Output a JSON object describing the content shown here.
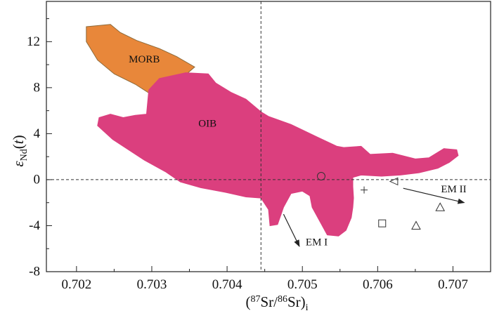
{
  "chart_data": {
    "type": "scatter",
    "xlabel": "(87Sr/86Sr)i",
    "ylabel": "εNd(t)",
    "x_axis_parts": [
      {
        "text": "(",
        "super": false,
        "sub": false
      },
      {
        "text": "87",
        "super": true,
        "sub": false
      },
      {
        "text": "Sr/",
        "super": false,
        "sub": false
      },
      {
        "text": "86",
        "super": true,
        "sub": false
      },
      {
        "text": "Sr)",
        "super": false,
        "sub": false
      },
      {
        "text": "i",
        "super": false,
        "sub": true
      }
    ],
    "y_axis_parts": [
      {
        "text": "ε",
        "italic": true,
        "sub": false
      },
      {
        "text": "Nd",
        "italic": false,
        "sub": true
      },
      {
        "text": "(",
        "italic": false,
        "sub": false
      },
      {
        "text": "t",
        "italic": true,
        "sub": false
      },
      {
        "text": ")",
        "italic": false,
        "sub": false
      }
    ],
    "xlim": [
      0.7016,
      0.7075
    ],
    "ylim": [
      -8,
      15.5
    ],
    "xticks": [
      0.702,
      0.703,
      0.704,
      0.705,
      0.706,
      0.707
    ],
    "xtick_labels": [
      "0.702",
      "0.703",
      "0.704",
      "0.705",
      "0.706",
      "0.707"
    ],
    "yticks": [
      -8,
      -4,
      0,
      4,
      8,
      12
    ],
    "ytick_labels": [
      "-8",
      "-4",
      "0",
      "4",
      "8",
      "12"
    ],
    "grid": false,
    "reference_lines": [
      {
        "orientation": "vertical",
        "x": 0.70445,
        "style": "dashed"
      },
      {
        "orientation": "horizontal",
        "y": 0,
        "style": "dashed"
      }
    ],
    "fields": [
      {
        "name": "MORB",
        "color": "#E8873A",
        "outline": "#8C6A3A",
        "label_at": [
          0.7029,
          10.4
        ],
        "polygon": [
          [
            0.70213,
            13.3
          ],
          [
            0.70245,
            13.5
          ],
          [
            0.70258,
            12.8
          ],
          [
            0.7028,
            12.1
          ],
          [
            0.7031,
            11.4
          ],
          [
            0.70333,
            10.7
          ],
          [
            0.70357,
            9.8
          ],
          [
            0.70327,
            8.1
          ],
          [
            0.703,
            7.3
          ],
          [
            0.70297,
            7.5
          ],
          [
            0.70278,
            8.3
          ],
          [
            0.7025,
            9.2
          ],
          [
            0.70228,
            10.4
          ],
          [
            0.70213,
            12.0
          ]
        ]
      },
      {
        "name": "OIB",
        "color": "#DB3F7E",
        "outline": "#DB3F7E",
        "label_at": [
          0.70374,
          4.8
        ],
        "polygon": [
          [
            0.70293,
            5.7
          ],
          [
            0.70296,
            7.8
          ],
          [
            0.7031,
            8.8
          ],
          [
            0.70345,
            9.3
          ],
          [
            0.70375,
            9.2
          ],
          [
            0.70385,
            8.4
          ],
          [
            0.70405,
            7.6
          ],
          [
            0.70425,
            7.0
          ],
          [
            0.70445,
            5.9
          ],
          [
            0.70455,
            5.5
          ],
          [
            0.70485,
            4.8
          ],
          [
            0.7052,
            3.7
          ],
          [
            0.70546,
            2.9
          ],
          [
            0.70555,
            2.8
          ],
          [
            0.70578,
            2.9
          ],
          [
            0.7059,
            2.2
          ],
          [
            0.7062,
            2.3
          ],
          [
            0.7065,
            1.8
          ],
          [
            0.70668,
            1.9
          ],
          [
            0.70688,
            2.7
          ],
          [
            0.70705,
            2.6
          ],
          [
            0.70707,
            2.1
          ],
          [
            0.70695,
            1.5
          ],
          [
            0.7068,
            1.0
          ],
          [
            0.70655,
            0.6
          ],
          [
            0.7063,
            0.4
          ],
          [
            0.70605,
            0.3
          ],
          [
            0.70578,
            0.4
          ],
          [
            0.70567,
            0.2
          ],
          [
            0.70567,
            -0.6
          ],
          [
            0.70568,
            -1.6
          ],
          [
            0.70567,
            -2.4
          ],
          [
            0.70565,
            -3.3
          ],
          [
            0.70558,
            -4.4
          ],
          [
            0.70548,
            -4.9
          ],
          [
            0.70533,
            -4.8
          ],
          [
            0.70523,
            -3.6
          ],
          [
            0.70513,
            -2.4
          ],
          [
            0.7051,
            -1.4
          ],
          [
            0.705,
            -1.0
          ],
          [
            0.70485,
            -1.2
          ],
          [
            0.70475,
            -2.4
          ],
          [
            0.70467,
            -3.9
          ],
          [
            0.70457,
            -4.0
          ],
          [
            0.70455,
            -2.6
          ],
          [
            0.70445,
            -1.6
          ],
          [
            0.70425,
            -1.5
          ],
          [
            0.70398,
            -1.1
          ],
          [
            0.70365,
            -0.7
          ],
          [
            0.70338,
            -0.2
          ],
          [
            0.70318,
            0.7
          ],
          [
            0.7029,
            1.7
          ],
          [
            0.70248,
            3.5
          ],
          [
            0.70228,
            4.7
          ],
          [
            0.7023,
            5.4
          ],
          [
            0.70245,
            5.7
          ],
          [
            0.70262,
            5.4
          ],
          [
            0.70278,
            5.6
          ]
        ]
      }
    ],
    "series": [
      {
        "marker": "circle",
        "points": [
          [
            0.70525,
            0.3
          ]
        ]
      },
      {
        "marker": "plus",
        "points": [
          [
            0.70582,
            -0.9
          ]
        ]
      },
      {
        "marker": "triangle-left",
        "points": [
          [
            0.70622,
            -0.15
          ]
        ]
      },
      {
        "marker": "square",
        "points": [
          [
            0.70606,
            -3.8
          ]
        ]
      },
      {
        "marker": "triangle-up",
        "points": [
          [
            0.70651,
            -4.0
          ],
          [
            0.70683,
            -2.4
          ]
        ]
      }
    ],
    "annotations": [
      {
        "text": "EM I",
        "label_at": [
          0.70519,
          -5.5
        ],
        "arrow_from": [
          0.70475,
          -3.0
        ],
        "arrow_to": [
          0.70496,
          -5.8
        ]
      },
      {
        "text": "EM II",
        "label_at": [
          0.70701,
          -0.9
        ],
        "arrow_from": [
          0.70634,
          -0.75
        ],
        "arrow_to": [
          0.70715,
          -2.0
        ]
      }
    ]
  }
}
